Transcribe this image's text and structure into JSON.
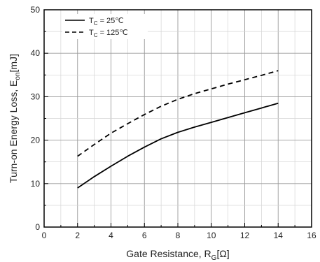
{
  "chart_data": {
    "type": "line",
    "xlabel": "Gate Resistance, R",
    "xlabel_sub": "G",
    "xlabel_unit": "[Ω]",
    "ylabel": "Turn-on Energy Loss, E",
    "ylabel_sub": "on",
    "ylabel_unit": "[mJ]",
    "xlim": [
      0,
      16
    ],
    "ylim": [
      0,
      50
    ],
    "x_ticks": [
      "0",
      "2",
      "4",
      "6",
      "8",
      "10",
      "12",
      "14",
      "16"
    ],
    "y_ticks": [
      "0",
      "10",
      "20",
      "30",
      "40",
      "50"
    ],
    "grid": true,
    "legend_position": "top-left",
    "series": [
      {
        "name": "T",
        "name_sub": "C",
        "name_suffix": " = 25℃",
        "style": "solid",
        "color": "#000000",
        "x": [
          2,
          3,
          4,
          5,
          6,
          7,
          8,
          9,
          10,
          11,
          12,
          13,
          14
        ],
        "y": [
          9.0,
          11.6,
          14.0,
          16.3,
          18.4,
          20.3,
          21.8,
          23.0,
          24.1,
          25.2,
          26.3,
          27.4,
          28.5
        ]
      },
      {
        "name": "T",
        "name_sub": "C",
        "name_suffix": " = 125℃",
        "style": "dashed",
        "color": "#000000",
        "x": [
          2,
          3,
          4,
          5,
          6,
          7,
          8,
          9,
          10,
          11,
          12,
          13,
          14
        ],
        "y": [
          16.3,
          19.0,
          21.6,
          23.8,
          25.9,
          27.8,
          29.4,
          30.7,
          31.8,
          32.9,
          33.9,
          34.9,
          36.0
        ]
      }
    ]
  }
}
